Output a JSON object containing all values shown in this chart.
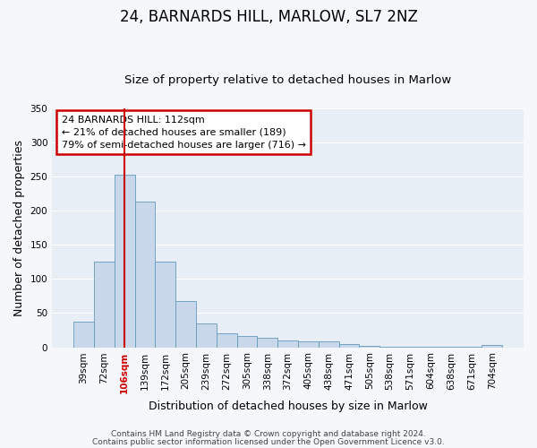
{
  "title": "24, BARNARDS HILL, MARLOW, SL7 2NZ",
  "subtitle": "Size of property relative to detached houses in Marlow",
  "xlabel": "Distribution of detached houses by size in Marlow",
  "ylabel": "Number of detached properties",
  "bar_labels": [
    "39sqm",
    "72sqm",
    "106sqm",
    "139sqm",
    "172sqm",
    "205sqm",
    "239sqm",
    "272sqm",
    "305sqm",
    "338sqm",
    "372sqm",
    "405sqm",
    "438sqm",
    "471sqm",
    "505sqm",
    "538sqm",
    "571sqm",
    "604sqm",
    "638sqm",
    "671sqm",
    "704sqm"
  ],
  "bar_values": [
    38,
    125,
    253,
    213,
    125,
    67,
    35,
    20,
    17,
    14,
    10,
    8,
    8,
    5,
    2,
    1,
    0.5,
    0.3,
    0.2,
    0.1,
    3
  ],
  "bar_color": "#c8d8ea",
  "bar_edge_color": "#6699bb",
  "vline_x_index": 2,
  "vline_color": "#cc0000",
  "ylim": [
    0,
    350
  ],
  "yticks": [
    0,
    50,
    100,
    150,
    200,
    250,
    300,
    350
  ],
  "annotation_line1": "24 BARNARDS HILL: 112sqm",
  "annotation_line2": "← 21% of detached houses are smaller (189)",
  "annotation_line3": "79% of semi-detached houses are larger (716) →",
  "annotation_box_color": "#ffffff",
  "annotation_box_edge": "#cc0000",
  "footer_line1": "Contains HM Land Registry data © Crown copyright and database right 2024.",
  "footer_line2": "Contains public sector information licensed under the Open Government Licence v3.0.",
  "plot_bg_color": "#e8eef5",
  "fig_bg_color": "#f5f7fa",
  "grid_color": "#ffffff",
  "title_fontsize": 12,
  "subtitle_fontsize": 9.5,
  "ylabel_fontsize": 9,
  "xlabel_fontsize": 9,
  "tick_fontsize": 7.5,
  "footer_fontsize": 6.5
}
